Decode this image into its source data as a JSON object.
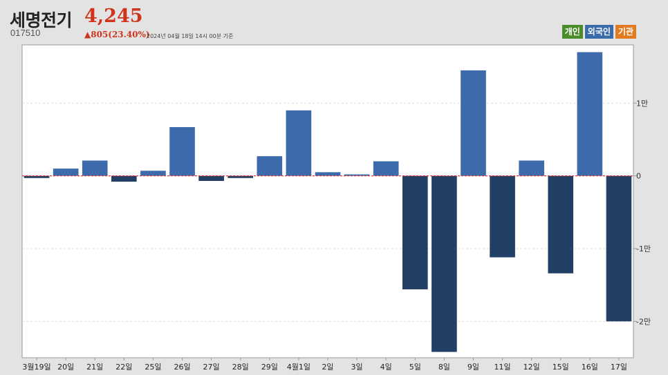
{
  "header": {
    "name": "세명전기",
    "price": "4,245",
    "code": "017510",
    "change": "▲805(23.40%)",
    "timestamp": "2024년 04월 18일 14시 00분 기준"
  },
  "legend": [
    {
      "label": "개인",
      "color": "#4a8c2a"
    },
    {
      "label": "외국인",
      "color": "#3a6bab"
    },
    {
      "label": "기관",
      "color": "#e07b22"
    }
  ],
  "colors": {
    "positive": "#3d6aaa",
    "negative": "#223f66",
    "zero_line": "#dd3333"
  },
  "chart_data": {
    "type": "bar",
    "series": [
      {
        "name": "외국인"
      }
    ],
    "categories": [
      "3월19일",
      "20일",
      "21일",
      "22일",
      "25일",
      "26일",
      "27일",
      "28일",
      "29일",
      "4월1일",
      "2일",
      "3일",
      "4일",
      "5일",
      "8일",
      "9일",
      "11일",
      "12일",
      "15일",
      "16일",
      "17일"
    ],
    "values": [
      -300,
      1000,
      2100,
      -800,
      700,
      6700,
      -700,
      -300,
      2700,
      9000,
      500,
      200,
      2000,
      -15600,
      -24200,
      14500,
      -11200,
      2100,
      -13400,
      17000,
      -20000
    ],
    "ylim": [
      -25000,
      18000
    ],
    "yticks": [
      -20000,
      -10000,
      0,
      10000
    ],
    "ytick_labels": [
      "-2만",
      "-1만",
      "0",
      "1만"
    ],
    "grid": true,
    "legend_position": "top-right"
  }
}
